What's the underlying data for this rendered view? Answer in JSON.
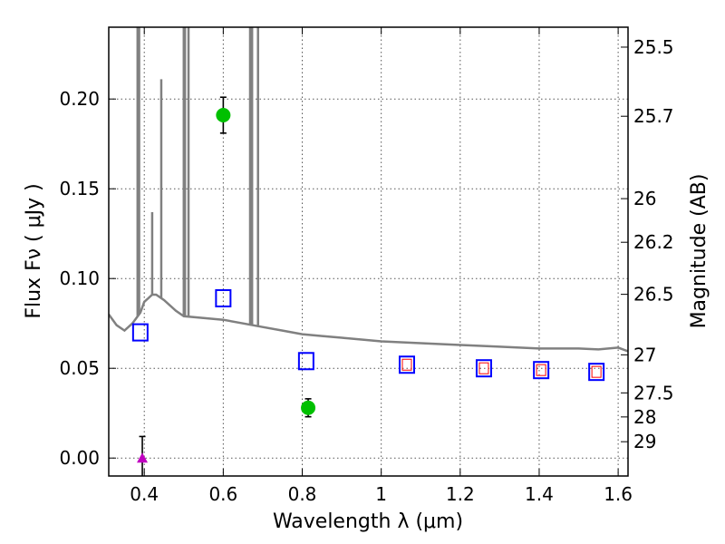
{
  "chart_data": {
    "type": "scatter",
    "xlabel": "Wavelength  λ (μm)",
    "ylabel_left": "Flux  Fν  ( μJy )",
    "ylabel_right": "Magnitude (AB)",
    "xlim": [
      0.31,
      1.625
    ],
    "ylim": [
      -0.01,
      0.24
    ],
    "grid": true,
    "x_ticks": [
      0.4,
      0.6,
      0.8,
      1.0,
      1.2,
      1.4,
      1.6
    ],
    "x_tick_labels": [
      "0.4",
      "0.6",
      "0.8",
      "1",
      "1.2",
      "1.4",
      "1.6"
    ],
    "y_ticks": [
      0.0,
      0.05,
      0.1,
      0.15,
      0.2
    ],
    "y_tick_labels": [
      "0.00",
      "0.05",
      "0.10",
      "0.15",
      "0.20"
    ],
    "right_ticks": [
      {
        "flux": 0.2289,
        "label": "25.5"
      },
      {
        "flux": 0.1904,
        "label": "25.7"
      },
      {
        "flux": 0.1445,
        "label": "26"
      },
      {
        "flux": 0.1202,
        "label": "26.2"
      },
      {
        "flux": 0.0912,
        "label": "26.5"
      },
      {
        "flux": 0.0575,
        "label": "27"
      },
      {
        "flux": 0.0363,
        "label": "27.5"
      },
      {
        "flux": 0.0229,
        "label": "28"
      },
      {
        "flux": 0.0091,
        "label": "29"
      }
    ],
    "colors": {
      "model": "#808080",
      "observed": "#00c000",
      "model_broadband": "#0000ff",
      "model_inner": "#ff0000",
      "upper_limit": "#c000c0",
      "errorbar": "#000000",
      "grid": "#555555"
    },
    "series": [
      {
        "name": "model_spectrum",
        "kind": "line",
        "x": [
          0.31,
          0.33,
          0.35,
          0.37,
          0.38,
          0.39,
          0.4,
          0.41,
          0.42,
          0.43,
          0.45,
          0.48,
          0.5,
          0.55,
          0.6,
          0.65,
          0.7,
          0.75,
          0.8,
          0.85,
          0.9,
          0.95,
          1.0,
          1.1,
          1.2,
          1.3,
          1.4,
          1.5,
          1.55,
          1.6,
          1.625
        ],
        "y": [
          0.08,
          0.074,
          0.071,
          0.075,
          0.078,
          0.081,
          0.087,
          0.089,
          0.091,
          0.091,
          0.088,
          0.082,
          0.079,
          0.078,
          0.077,
          0.075,
          0.073,
          0.071,
          0.069,
          0.068,
          0.067,
          0.066,
          0.065,
          0.064,
          0.063,
          0.062,
          0.061,
          0.061,
          0.0605,
          0.0615,
          0.0595
        ],
        "emission_lines": [
          {
            "x": 0.383,
            "peak": 0.24
          },
          {
            "x": 0.387,
            "peak": 0.24
          },
          {
            "x": 0.42,
            "peak": 0.137
          },
          {
            "x": 0.443,
            "peak": 0.211
          },
          {
            "x": 0.5,
            "peak": 0.24
          },
          {
            "x": 0.503,
            "peak": 0.24
          },
          {
            "x": 0.512,
            "peak": 0.24
          },
          {
            "x": 0.668,
            "peak": 0.24
          },
          {
            "x": 0.673,
            "peak": 0.24
          },
          {
            "x": 0.688,
            "peak": 0.24
          }
        ]
      },
      {
        "name": "observed_flux",
        "kind": "circle",
        "x": [
          0.6,
          0.815
        ],
        "y": [
          0.191,
          0.028
        ],
        "yerr": [
          0.01,
          0.005
        ]
      },
      {
        "name": "model_broadband_flux",
        "kind": "open-square",
        "x": [
          0.39,
          0.6,
          0.81,
          1.065,
          1.26,
          1.405,
          1.545
        ],
        "y": [
          0.07,
          0.089,
          0.054,
          0.052,
          0.05,
          0.049,
          0.048
        ]
      },
      {
        "name": "model_narrowband_flux",
        "kind": "small-square",
        "x": [
          1.065,
          1.26,
          1.405,
          1.545
        ],
        "y": [
          0.052,
          0.05,
          0.049,
          0.048
        ]
      },
      {
        "name": "upper_limit",
        "kind": "triangle",
        "x": [
          0.395
        ],
        "y": [
          0.0
        ],
        "yerr": [
          0.012
        ]
      }
    ]
  }
}
